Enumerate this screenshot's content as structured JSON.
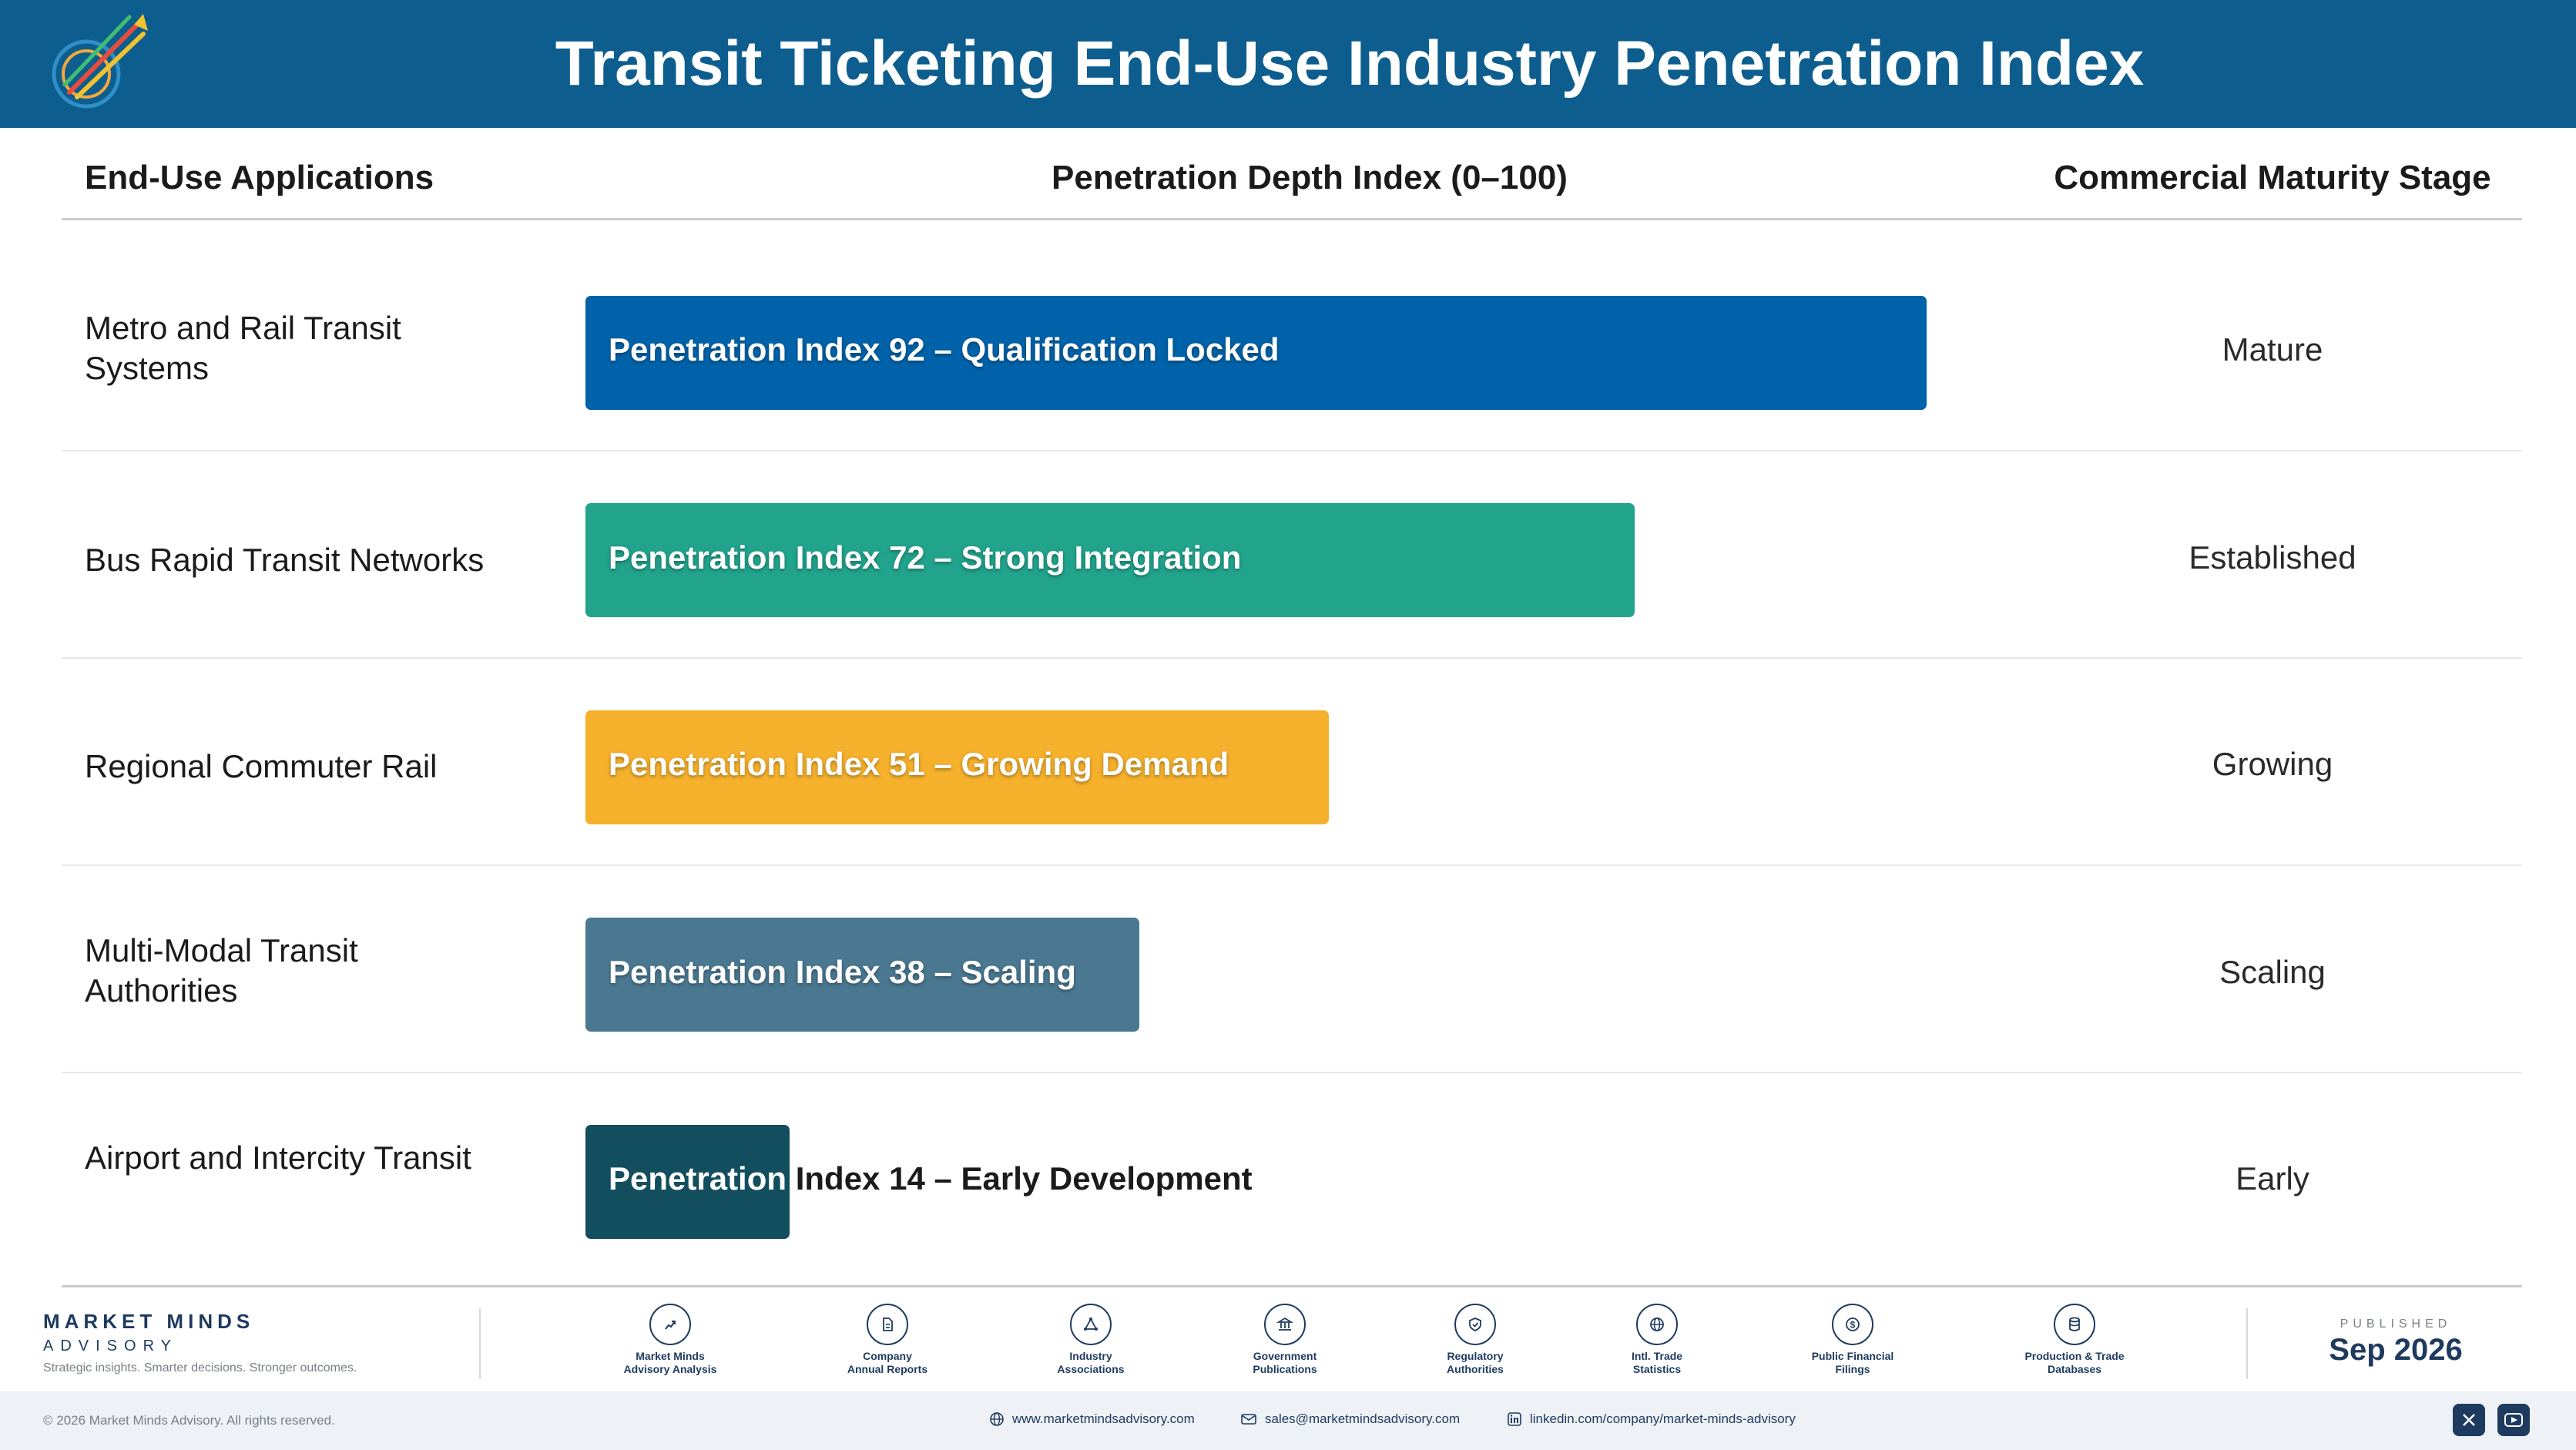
{
  "header": {
    "title": "Transit Ticketing End-Use Industry Penetration Index",
    "logo_text": "MARKET MINDS ADVISORY"
  },
  "columns": {
    "applications": "End-Use Applications",
    "index": "Penetration Depth Index (0–100)",
    "stage": "Commercial Maturity Stage"
  },
  "chart_data": {
    "type": "bar",
    "orientation": "horizontal",
    "xlim": [
      0,
      100
    ],
    "categories": [
      "Metro and Rail Transit Systems",
      "Bus Rapid Transit Networks",
      "Regional Commuter Rail",
      "Multi-Modal Transit Authorities",
      "Airport and Intercity Transit"
    ],
    "values": [
      92,
      72,
      51,
      38,
      14
    ],
    "bar_labels": [
      "Penetration Index 92 – Qualification Locked",
      "Penetration Index 72 – Strong Integration",
      "Penetration Index 51 – Growing Demand",
      "Penetration Index 38 – Scaling",
      "Penetration Index 14 – Early Development"
    ],
    "stages": [
      "Mature",
      "Established",
      "Growing",
      "Scaling",
      "Early"
    ],
    "colors": [
      "#0062a8",
      "#21a38c",
      "#f5b02c",
      "#4a7891",
      "#124e5e"
    ]
  },
  "footer": {
    "brand_name": "MARKET MINDS",
    "brand_sub": "ADVISORY",
    "tagline": "Strategic insights. Smarter decisions. Stronger outcomes.",
    "sources": [
      {
        "icon": "trend-chart-icon",
        "label1": "Market Minds",
        "label2": "Advisory Analysis"
      },
      {
        "icon": "document-icon",
        "label1": "Company",
        "label2": "Annual Reports"
      },
      {
        "icon": "network-icon",
        "label1": "Industry",
        "label2": "Associations"
      },
      {
        "icon": "government-building-icon",
        "label1": "Government",
        "label2": "Publications"
      },
      {
        "icon": "shield-check-icon",
        "label1": "Regulatory",
        "label2": "Authorities"
      },
      {
        "icon": "globe-icon",
        "label1": "Intl. Trade",
        "label2": "Statistics"
      },
      {
        "icon": "dollar-coin-icon",
        "label1": "Public Financial",
        "label2": "Filings"
      },
      {
        "icon": "database-icon",
        "label1": "Production & Trade",
        "label2": "Databases"
      }
    ],
    "published_label": "PUBLISHED",
    "published_date": "Sep 2026",
    "copyright": "© 2026 Market Minds Advisory. All rights reserved.",
    "website": "www.marketmindsadvisory.com",
    "email": "sales@marketmindsadvisory.com",
    "linkedin": "linkedin.com/company/market-minds-advisory"
  }
}
